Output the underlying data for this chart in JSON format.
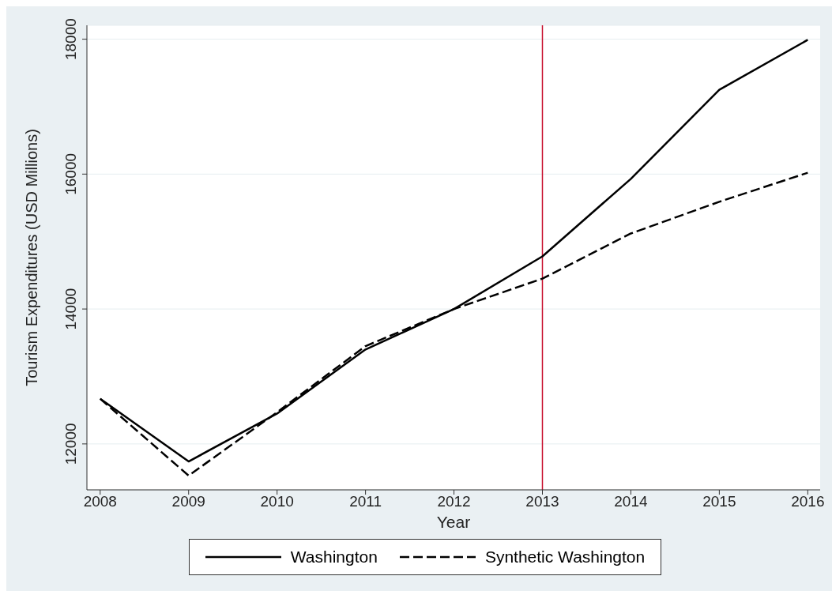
{
  "chart_data": {
    "type": "line",
    "xlabel": "Year",
    "ylabel": "Tourism Expenditures (USD Millions)",
    "x": [
      2008,
      2009,
      2010,
      2011,
      2012,
      2013,
      2014,
      2015,
      2016
    ],
    "series": [
      {
        "name": "Washington",
        "color": "#000000",
        "line_style": "solid",
        "values": [
          12670,
          11740,
          12450,
          13400,
          14000,
          14780,
          15930,
          17250,
          17990
        ]
      },
      {
        "name": "Synthetic Washington",
        "color": "#000000",
        "line_style": "dashed",
        "values": [
          12670,
          11530,
          12470,
          13450,
          14000,
          14450,
          15120,
          15590,
          16020
        ]
      }
    ],
    "xlim": [
      2007.85,
      2016.14
    ],
    "xticks": [
      2008,
      2009,
      2010,
      2011,
      2012,
      2013,
      2014,
      2015,
      2016
    ],
    "ylim": [
      11319,
      18206
    ],
    "yticks": [
      12000,
      14000,
      16000,
      18000
    ],
    "ref_lines": [
      {
        "axis": "x",
        "value": 2013,
        "color": "#c8102e"
      }
    ],
    "grid": "y",
    "legend": "bottom",
    "marker": "none"
  }
}
